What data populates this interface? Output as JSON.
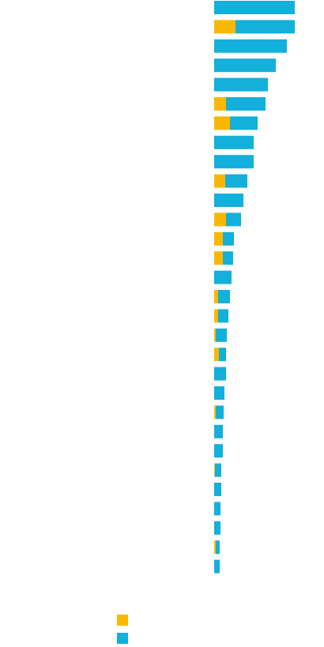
{
  "chart_data": {
    "type": "bar",
    "orientation": "horizontal",
    "stacked": true,
    "categories": [
      "",
      "",
      "",
      "",
      "",
      "",
      "",
      "",
      "",
      "",
      "",
      "",
      "",
      "",
      "",
      "",
      "",
      "",
      "",
      "",
      "",
      "",
      "",
      "",
      "",
      "",
      "",
      "",
      "",
      ""
    ],
    "series": [
      {
        "name": "",
        "color": "#F9B800",
        "values": [
          0,
          27,
          0,
          0,
          0,
          15,
          20,
          0,
          0,
          14,
          0,
          15,
          11,
          11,
          0,
          5,
          5,
          2,
          6,
          0,
          0,
          2,
          0,
          0,
          1,
          0,
          0,
          0,
          2,
          0
        ]
      },
      {
        "name": "",
        "color": "#12B0DA",
        "values": [
          102,
          75,
          92,
          78,
          68,
          50,
          35,
          50,
          50,
          28,
          37,
          19,
          14,
          13,
          22,
          15,
          13,
          14,
          9,
          15,
          13,
          10,
          11,
          11,
          8,
          9,
          8,
          8,
          5,
          7
        ]
      }
    ],
    "xlim": [
      0,
      110
    ],
    "grid": false,
    "legend": "bottom"
  }
}
